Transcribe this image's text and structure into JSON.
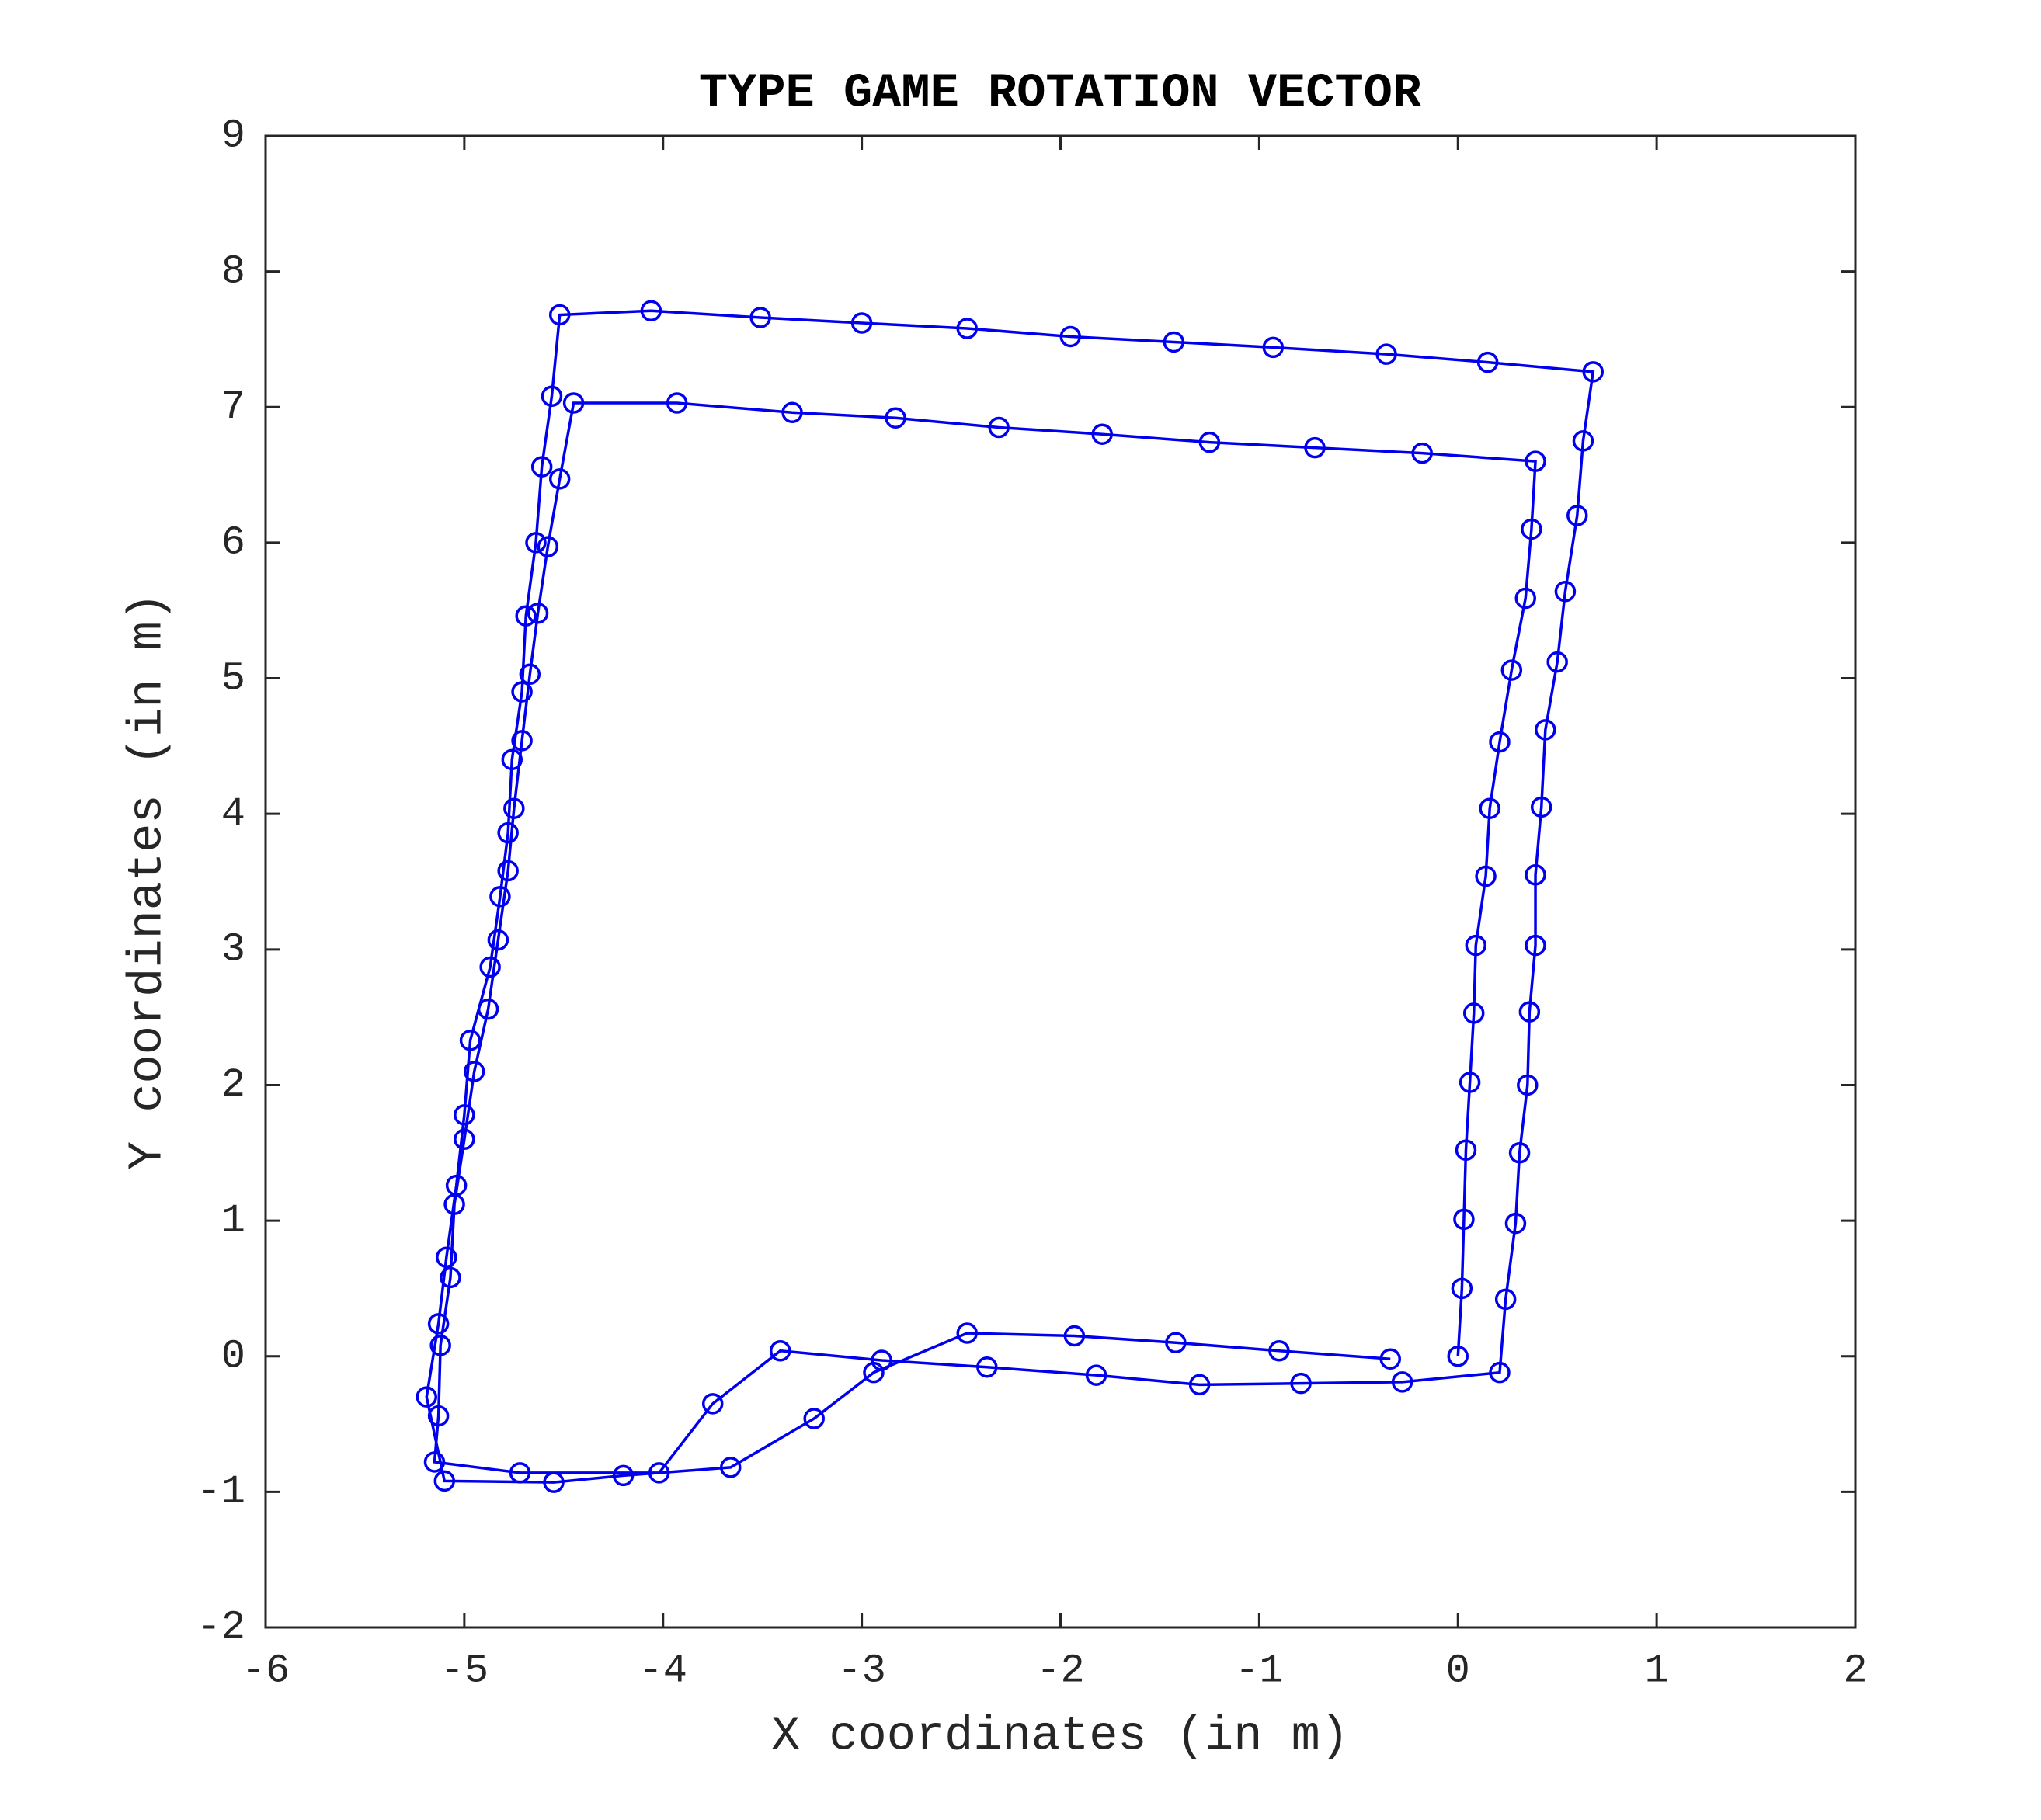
{
  "chart_data": {
    "type": "line",
    "title": "TYPE GAME ROTATION VECTOR",
    "x_label": "X coordinates (in m)",
    "y_label": "Y coordinates (in m)",
    "color": "#0000ee",
    "marker": "circle",
    "xlim": [
      -6,
      2
    ],
    "xticks": [
      -6,
      -5,
      -4,
      -3,
      -2,
      -1,
      0,
      1,
      2
    ],
    "ylim": [
      -2,
      9
    ],
    "yticks": [
      -2,
      -1,
      0,
      1,
      2,
      3,
      4,
      5,
      6,
      7,
      8,
      9
    ],
    "x": [
      0,
      0.02,
      0.03,
      0.04,
      0.06,
      0.08,
      0.09,
      0.14,
      0.16,
      0.21,
      0.27,
      0.34,
      0.37,
      0.39,
      -0.18,
      -0.72,
      -1.25,
      -1.79,
      -2.31,
      -2.83,
      -3.35,
      -3.93,
      -4.45,
      -4.52,
      -4.58,
      -4.63,
      -4.67,
      -4.71,
      -4.75,
      -4.78,
      -4.83,
      -4.88,
      -4.95,
      -5.0,
      -5.05,
      -5.07,
      -5.12,
      -5.13,
      -5.15,
      -4.72,
      -4.02,
      -3.75,
      -3.41,
      -2.9,
      -2.37,
      -1.82,
      -1.3,
      -0.79,
      -0.28,
      0.21,
      0.24,
      0.29,
      0.31,
      0.35,
      0.36,
      0.39,
      0.39,
      0.42,
      0.44,
      0.5,
      0.54,
      0.6,
      0.63,
      0.68,
      0.15,
      -0.36,
      -0.93,
      -1.43,
      -1.95,
      -2.47,
      -3.0,
      -3.51,
      -4.06,
      -4.52,
      -4.56,
      -4.61,
      -4.64,
      -4.69,
      -4.71,
      -4.76,
      -4.78,
      -4.82,
      -4.87,
      -4.97,
      -5.0,
      -5.04,
      -5.09,
      -5.13,
      -5.19,
      -5.1,
      -4.55,
      -4.2,
      -3.66,
      -3.24,
      -2.94,
      -2.47,
      -1.93,
      -1.42,
      -0.9,
      -0.34
    ],
    "values": [
      0,
      0.5,
      1.01,
      1.52,
      2.02,
      2.53,
      3.03,
      3.54,
      4.04,
      4.53,
      5.06,
      5.59,
      6.1,
      6.6,
      6.66,
      6.7,
      6.74,
      6.8,
      6.85,
      6.92,
      6.96,
      7.03,
      7.03,
      6.47,
      5.97,
      5.48,
      5.03,
      4.54,
      4.04,
      3.58,
      3.07,
      2.56,
      2.1,
      1.6,
      1.12,
      0.58,
      0.08,
      -0.44,
      -0.78,
      -0.86,
      -0.86,
      -0.35,
      0.04,
      -0.03,
      -0.08,
      -0.14,
      -0.21,
      -0.2,
      -0.19,
      -0.12,
      0.42,
      0.98,
      1.5,
      2.0,
      2.54,
      3.03,
      3.55,
      4.05,
      4.62,
      5.12,
      5.64,
      6.2,
      6.75,
      7.26,
      7.33,
      7.39,
      7.44,
      7.48,
      7.52,
      7.58,
      7.62,
      7.66,
      7.71,
      7.68,
      7.08,
      6.56,
      6.0,
      5.46,
      4.9,
      4.4,
      3.86,
      3.39,
      2.87,
      2.33,
      1.78,
      1.26,
      0.73,
      0.24,
      -0.3,
      -0.92,
      -0.93,
      -0.88,
      -0.82,
      -0.46,
      -0.12,
      0.17,
      0.15,
      0.1,
      0.04,
      -0.02
    ]
  }
}
